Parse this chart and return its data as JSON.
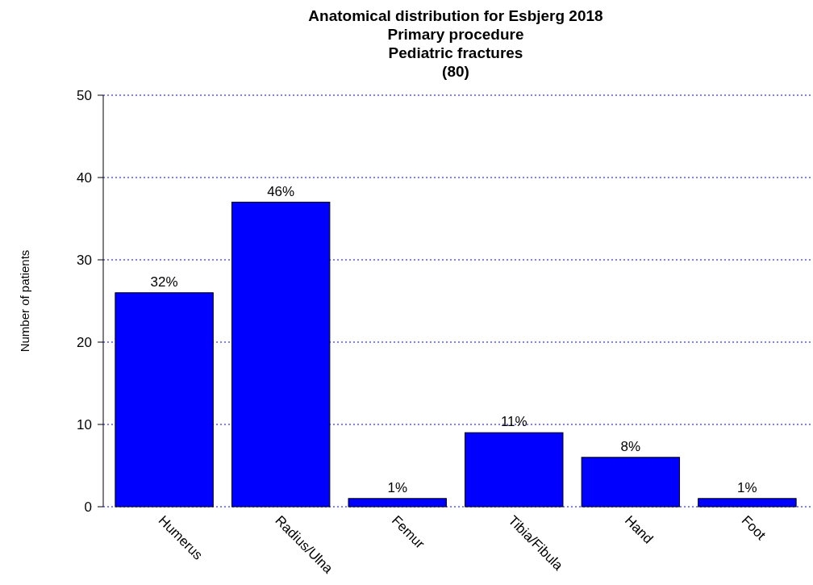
{
  "chart_data": {
    "type": "bar",
    "title": "Anatomical distribution for Esbjerg  2018\nPrimary procedure\nPediatric fractures\n(80)",
    "ylabel": "Number of patients",
    "categories": [
      "Humerus",
      "Radius/Ulna",
      "Femur",
      "Tibia/Fibula",
      "Hand",
      "Foot"
    ],
    "values": [
      26,
      37,
      1,
      9,
      6,
      1
    ],
    "annotations": [
      {
        "text": "32%",
        "x": "Humerus",
        "y": 26
      },
      {
        "text": "46%",
        "x": "Radius/Ulna",
        "y": 37
      },
      {
        "text": "1%",
        "x": "Femur",
        "y": 1
      },
      {
        "text": "11%",
        "x": "Tibia/Fibula",
        "y": 9
      },
      {
        "text": "8%",
        "x": "Hand",
        "y": 6
      },
      {
        "text": "1%",
        "x": "Foot",
        "y": 1
      }
    ],
    "color": "#0000ff",
    "ylim": [
      0,
      50
    ],
    "yticks": [
      0,
      10,
      20,
      30,
      40,
      50
    ],
    "grid": "y"
  }
}
